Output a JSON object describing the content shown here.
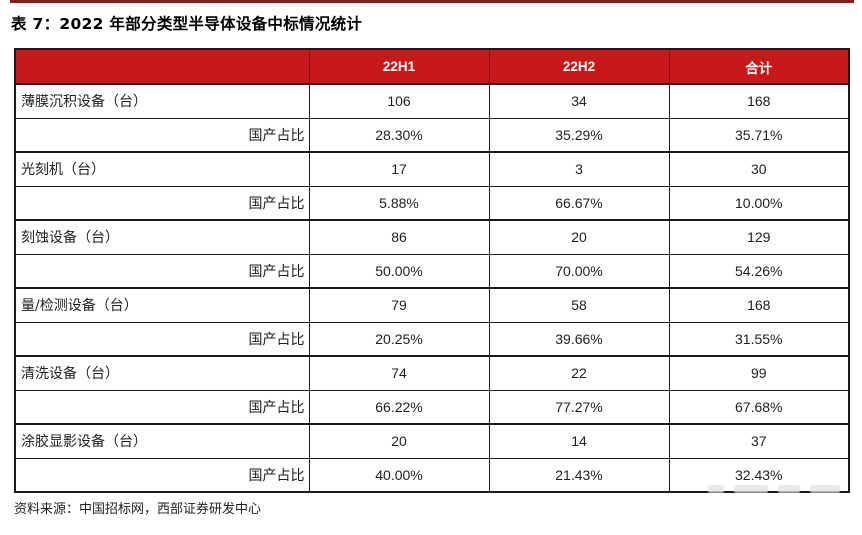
{
  "page": {
    "title": "表 7：2022 年部分类型半导体设备中标情况统计",
    "source": "资料来源：中国招标网，西部证券研发中心"
  },
  "colors": {
    "header_bg": "#c8181c",
    "header_divider": "#8f0e10",
    "top_rule": "#8b1a1a",
    "table_border": "#1a1a1a"
  },
  "table": {
    "columns": [
      "",
      "22H1",
      "22H2",
      "合计"
    ],
    "rows": [
      {
        "type": "device",
        "label": "薄膜沉积设备（台）",
        "c1": "106",
        "c2": "34",
        "c3": "168"
      },
      {
        "type": "share",
        "label": "国产占比",
        "c1": "28.30%",
        "c2": "35.29%",
        "c3": "35.71%"
      },
      {
        "type": "device",
        "label": "光刻机（台）",
        "c1": "17",
        "c2": "3",
        "c3": "30"
      },
      {
        "type": "share",
        "label": "国产占比",
        "c1": "5.88%",
        "c2": "66.67%",
        "c3": "10.00%"
      },
      {
        "type": "device",
        "label": "刻蚀设备（台）",
        "c1": "86",
        "c2": "20",
        "c3": "129"
      },
      {
        "type": "share",
        "label": "国产占比",
        "c1": "50.00%",
        "c2": "70.00%",
        "c3": "54.26%"
      },
      {
        "type": "device",
        "label": "量/检测设备（台）",
        "c1": "79",
        "c2": "58",
        "c3": "168"
      },
      {
        "type": "share",
        "label": "国产占比",
        "c1": "20.25%",
        "c2": "39.66%",
        "c3": "31.55%"
      },
      {
        "type": "device",
        "label": "清洗设备（台）",
        "c1": "74",
        "c2": "22",
        "c3": "99"
      },
      {
        "type": "share",
        "label": "国产占比",
        "c1": "66.22%",
        "c2": "77.27%",
        "c3": "67.68%"
      },
      {
        "type": "device",
        "label": "涂胶显影设备（台）",
        "c1": "20",
        "c2": "14",
        "c3": "37"
      },
      {
        "type": "share",
        "label": "国产占比",
        "c1": "40.00%",
        "c2": "21.43%",
        "c3": "32.43%"
      }
    ]
  }
}
